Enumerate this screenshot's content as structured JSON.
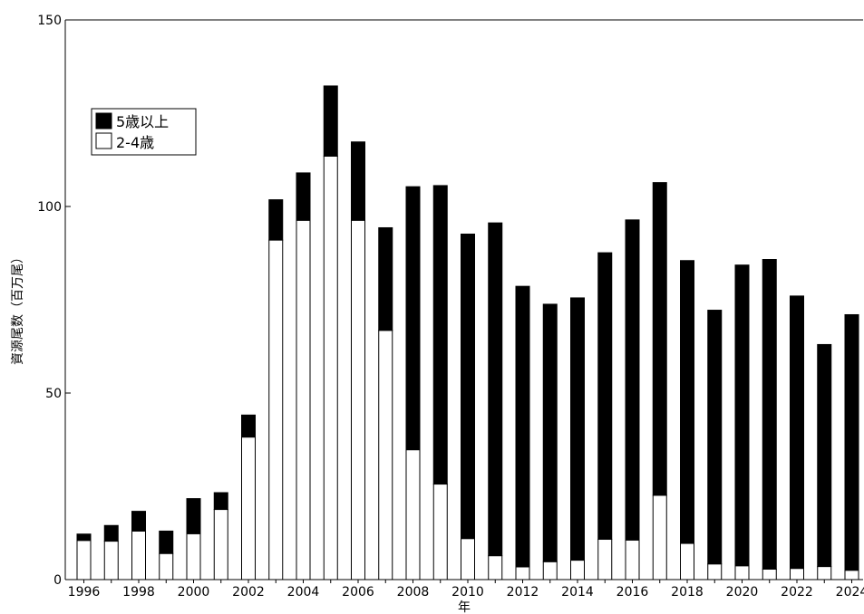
{
  "chart_data": {
    "type": "bar",
    "stacked": true,
    "title": "",
    "xlabel": "年",
    "ylabel": "資源尾数（百万尾）",
    "ylim": [
      0,
      150
    ],
    "yticks": [
      0,
      50,
      100,
      150
    ],
    "xticks": [
      "1996",
      "1998",
      "2000",
      "2002",
      "2004",
      "2006",
      "2008",
      "2010",
      "2012",
      "2014",
      "2016",
      "2018",
      "2020",
      "2022",
      "2024"
    ],
    "grid": false,
    "legend_position": "upper-left",
    "categories": [
      "1996",
      "1997",
      "1998",
      "1999",
      "2000",
      "2001",
      "2002",
      "2003",
      "2004",
      "2005",
      "2006",
      "2007",
      "2008",
      "2009",
      "2010",
      "2011",
      "2012",
      "2013",
      "2014",
      "2015",
      "2016",
      "2017",
      "2018",
      "2019",
      "2020",
      "2021",
      "2022",
      "2023",
      "2024"
    ],
    "series": [
      {
        "name": "2-4歳",
        "color": "#ffffff",
        "values": [
          10.5,
          10.3,
          13.0,
          7.0,
          12.3,
          18.8,
          38.2,
          91.0,
          96.3,
          113.5,
          96.3,
          66.8,
          34.8,
          25.6,
          11.0,
          6.4,
          3.4,
          4.8,
          5.2,
          10.8,
          10.6,
          22.6,
          9.7,
          4.2,
          3.7,
          2.8,
          3.0,
          3.5,
          2.5
        ]
      },
      {
        "name": "5歳以上",
        "color": "#000000",
        "values": [
          1.7,
          4.2,
          5.3,
          6.0,
          9.4,
          4.5,
          5.9,
          10.8,
          12.7,
          18.8,
          21.0,
          27.5,
          70.5,
          80.0,
          81.6,
          89.2,
          75.2,
          69.0,
          70.3,
          76.8,
          85.8,
          83.8,
          75.8,
          68.0,
          80.6,
          83.0,
          73.0,
          59.5,
          68.5
        ]
      }
    ]
  }
}
